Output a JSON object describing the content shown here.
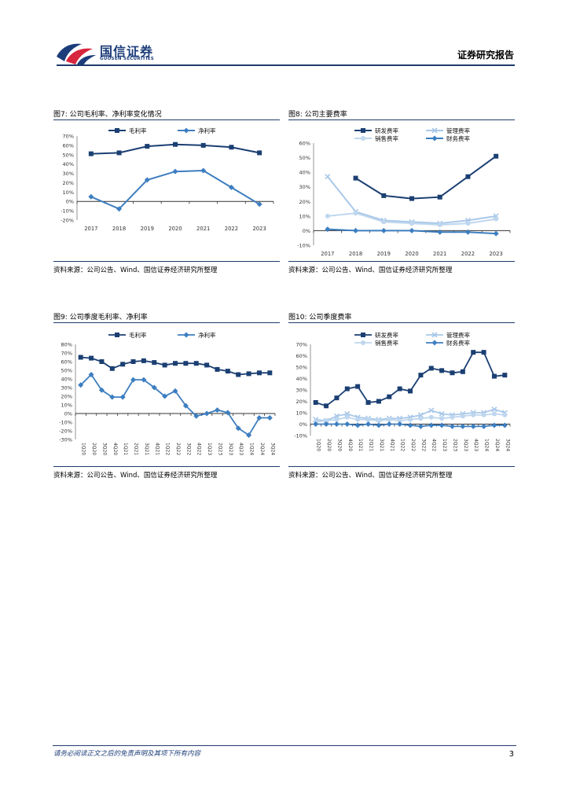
{
  "header": {
    "logo_cn": "国信证券",
    "logo_en": "GUOSEN SECURITIES",
    "right_title": "证券研究报告"
  },
  "figures": {
    "fig7": {
      "caption": "图7: 公司毛利率、净利率变化情况",
      "source": "资料来源：公司公告、Wind、国信证券经济研究所整理"
    },
    "fig8": {
      "caption": "图8: 公司主要费率",
      "source": "资料来源：公司公告、Wind、国信证券经济研究所整理"
    },
    "fig9": {
      "caption": "图9: 公司季度毛利率、净利率",
      "source": "资料来源：公司公告、Wind、国信证券经济研究所整理"
    },
    "fig10": {
      "caption": "图10: 公司季度费率",
      "source": "资料来源：公司公告、Wind、国信证券经济研究所整理"
    }
  },
  "footer": {
    "disclaimer": "请务必阅读正文之后的免责声明及其项下所有内容",
    "page_number": "3"
  },
  "colors": {
    "dark": "#1b3f72",
    "mid": "#3d7ec0",
    "light": "#a9c8e8",
    "pale": "#bfd7ee",
    "brand": "#1c3d7a"
  },
  "chart_data": [
    {
      "id": "fig7",
      "type": "line",
      "categories": [
        "2017",
        "2018",
        "2019",
        "2020",
        "2021",
        "2022",
        "2023"
      ],
      "ylim": [
        -20,
        70
      ],
      "yticks": [
        -20,
        -10,
        0,
        10,
        20,
        30,
        40,
        50,
        60,
        70
      ],
      "series": [
        {
          "name": "毛利率",
          "marker": "square",
          "color": "#1b3f72",
          "values": [
            51,
            52,
            59,
            61,
            60,
            58,
            52
          ]
        },
        {
          "name": "净利率",
          "marker": "diamond",
          "color": "#3d7ec0",
          "values": [
            5,
            -8,
            23,
            32,
            33,
            15,
            -3
          ]
        }
      ]
    },
    {
      "id": "fig8",
      "type": "line",
      "categories": [
        "2017",
        "2018",
        "2019",
        "2020",
        "2021",
        "2022",
        "2023"
      ],
      "ylim": [
        -10,
        60
      ],
      "yticks": [
        -10,
        0,
        10,
        20,
        30,
        40,
        50,
        60
      ],
      "series": [
        {
          "name": "研发费率",
          "marker": "square",
          "color": "#1b3f72",
          "values": [
            null,
            36,
            24,
            22,
            23,
            37,
            51
          ]
        },
        {
          "name": "管理费率",
          "marker": "x",
          "color": "#a9c8e8",
          "values": [
            37,
            13,
            7,
            6,
            5,
            7,
            10
          ]
        },
        {
          "name": "销售费率",
          "marker": "circle",
          "color": "#bfd7ee",
          "values": [
            10,
            12,
            6,
            5,
            4,
            5,
            8
          ]
        },
        {
          "name": "财务费率",
          "marker": "diamond",
          "color": "#3d7ec0",
          "values": [
            1,
            0,
            0,
            0,
            -1,
            -1,
            -2
          ]
        }
      ]
    },
    {
      "id": "fig9",
      "type": "line",
      "categories": [
        "1Q20",
        "2Q20",
        "3Q20",
        "4Q20",
        "1Q21",
        "2Q21",
        "3Q21",
        "4Q21",
        "1Q22",
        "2Q22",
        "3Q22",
        "4Q22",
        "1Q23",
        "2Q23",
        "3Q23",
        "4Q23",
        "1Q24",
        "2Q24",
        "3Q24"
      ],
      "category_labels": [
        "1Q20",
        "2Q20",
        "3Q20",
        "4Q20",
        "1Q21",
        "2Q21",
        "3Q21",
        "4Q21",
        "1Q22",
        "2Q22",
        "3Q22",
        "4Q22",
        "1Q23",
        "2Q23",
        "3Q23",
        "4Q23",
        "1Q24",
        "2Q24",
        "3Q24"
      ],
      "ylim": [
        -30,
        80
      ],
      "yticks": [
        -30,
        -20,
        -10,
        0,
        10,
        20,
        30,
        40,
        50,
        60,
        70,
        80
      ],
      "series": [
        {
          "name": "毛利率",
          "marker": "square",
          "color": "#1b3f72",
          "values": [
            65,
            64,
            60,
            52,
            57,
            60,
            61,
            59,
            56,
            58,
            58,
            58,
            56,
            51,
            49,
            45,
            46,
            47,
            47
          ]
        },
        {
          "name": "净利率",
          "marker": "diamond",
          "color": "#3d7ec0",
          "values": [
            33,
            45,
            27,
            19,
            19,
            39,
            39,
            30,
            20,
            26,
            9,
            -3,
            0,
            4,
            1,
            -17,
            -25,
            -5,
            -5
          ]
        }
      ]
    },
    {
      "id": "fig10",
      "type": "line",
      "categories": [
        "1Q20",
        "2Q20",
        "3Q20",
        "4Q20",
        "1Q21",
        "2Q21",
        "3Q21",
        "4Q21",
        "1Q22",
        "2Q22",
        "3Q22",
        "4Q22",
        "1Q23",
        "2Q23",
        "3Q23",
        "4Q23",
        "1Q24",
        "2Q24",
        "3Q24"
      ],
      "category_labels": [
        "1Q20",
        "2Q20",
        "3Q20",
        "4Q20",
        "1Q21",
        "2Q21",
        "3Q21",
        "4Q21",
        "1Q22",
        "2Q22",
        "3Q22",
        "4Q22",
        "1Q23",
        "2Q23",
        "3Q23",
        "4Q23",
        "1Q24",
        "2Q24",
        "3Q24"
      ],
      "ylim": [
        -10,
        70
      ],
      "yticks": [
        -10,
        0,
        10,
        20,
        30,
        40,
        50,
        60,
        70
      ],
      "series": [
        {
          "name": "研发费率",
          "marker": "square",
          "color": "#1b3f72",
          "values": [
            19,
            16,
            23,
            31,
            33,
            19,
            20,
            24,
            31,
            29,
            43,
            49,
            47,
            45,
            46,
            63,
            63,
            42,
            43
          ]
        },
        {
          "name": "管理费率",
          "marker": "x",
          "color": "#a9c8e8",
          "values": [
            4,
            3,
            7,
            9,
            6,
            5,
            4,
            5,
            5,
            6,
            8,
            12,
            9,
            8,
            9,
            10,
            10,
            13,
            10
          ]
        },
        {
          "name": "销售费率",
          "marker": "circle",
          "color": "#bfd7ee",
          "values": [
            2,
            3,
            4,
            6,
            4,
            4,
            3,
            4,
            3,
            4,
            5,
            6,
            5,
            6,
            7,
            8,
            8,
            9,
            8
          ]
        },
        {
          "name": "财务费率",
          "marker": "diamond",
          "color": "#3d7ec0",
          "values": [
            0,
            0,
            0,
            0,
            -1,
            0,
            -1,
            0,
            0,
            -1,
            -2,
            -1,
            -1,
            -2,
            -2,
            -2,
            -2,
            -1,
            -1
          ]
        }
      ]
    }
  ]
}
